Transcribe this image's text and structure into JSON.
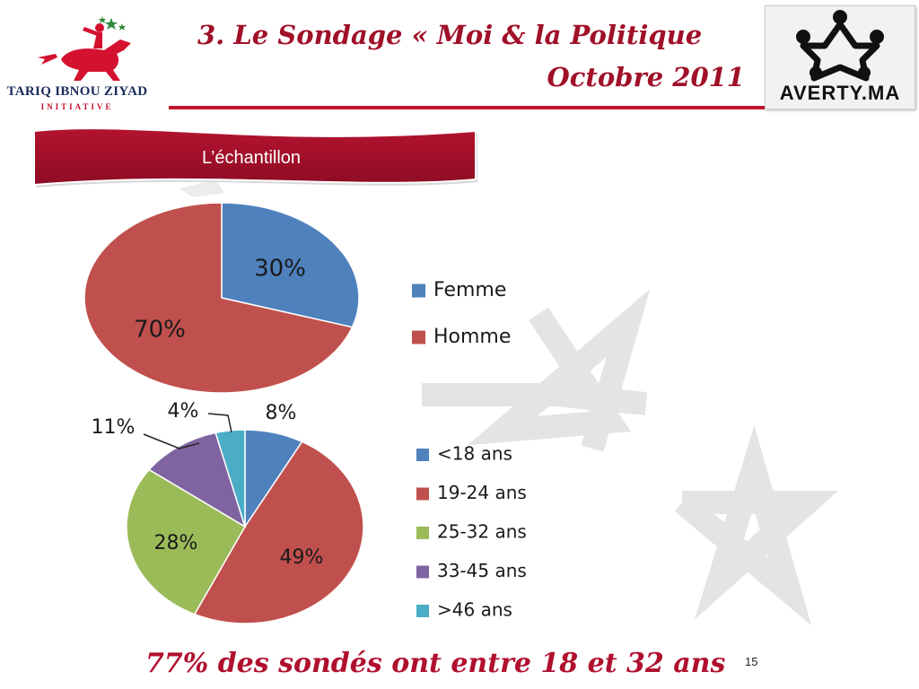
{
  "header": {
    "title_line1": "3. Le Sondage « Moi & la Politique",
    "title_line2": "Octobre  2011",
    "left_logo": {
      "name": "TARIQ IBNOU ZIYAD",
      "subtitle": "INITIATIVE"
    },
    "right_logo": {
      "name": "AVERTY.MA"
    }
  },
  "banner": {
    "label": "L’échantillon"
  },
  "colors": {
    "accent": "#a01028",
    "blue": "#4f81bd",
    "red": "#c0504d",
    "green": "#9bbb59",
    "purple": "#8064a2",
    "cyan": "#4bacc6"
  },
  "chart_data": [
    {
      "type": "pie",
      "categories": [
        "Femme",
        "Homme"
      ],
      "values": [
        30,
        70
      ],
      "labels": [
        "30%",
        "70%"
      ],
      "colors": [
        "#4f81bd",
        "#c0504d"
      ],
      "legend": "right"
    },
    {
      "type": "pie",
      "categories": [
        "<18 ans",
        "19-24 ans",
        "25-32 ans",
        "33-45 ans",
        ">46 ans"
      ],
      "values": [
        8,
        49,
        28,
        11,
        4
      ],
      "labels": [
        "8%",
        "49%",
        "28%",
        "11%",
        "4%"
      ],
      "colors": [
        "#4f81bd",
        "#c0504d",
        "#9bbb59",
        "#8064a2",
        "#4bacc6"
      ],
      "legend": "right"
    }
  ],
  "footer": {
    "text": "77% des sondés ont entre 18 et 32 ans",
    "page_number": "15"
  }
}
